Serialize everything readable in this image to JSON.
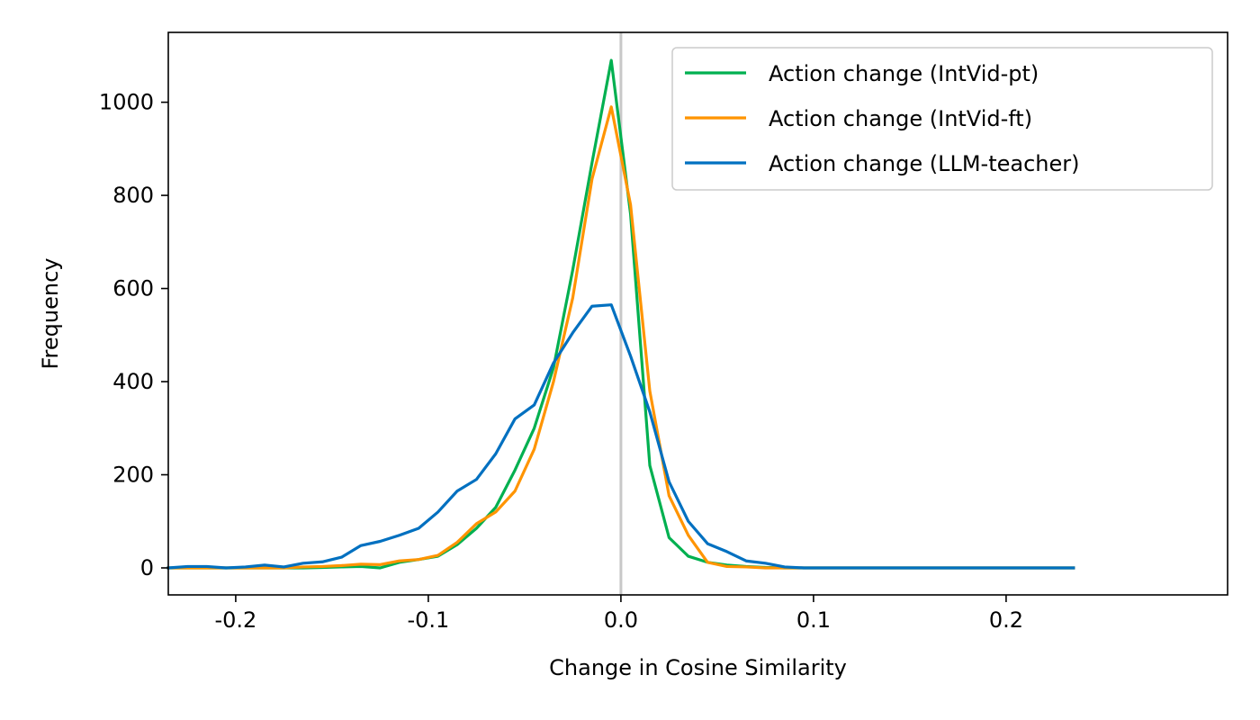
{
  "chart_data": {
    "type": "line",
    "xlabel": "Change in Cosine Similarity",
    "ylabel": "Frequency",
    "xlim": [
      -0.235,
      0.315
    ],
    "ylim": [
      -58,
      1150
    ],
    "x_ticks": [
      -0.2,
      -0.1,
      0.0,
      0.1,
      0.2
    ],
    "x_tick_labels": [
      "-0.2",
      "-0.1",
      "0.0",
      "0.1",
      "0.2"
    ],
    "y_ticks": [
      0,
      200,
      400,
      600,
      800,
      1000
    ],
    "y_tick_labels": [
      "0",
      "200",
      "400",
      "600",
      "800",
      "1000"
    ],
    "grid": false,
    "legend_position": "top-right",
    "reference_line": {
      "x": 0.0,
      "color": "#c8c8c8"
    },
    "x": [
      -0.235,
      -0.225,
      -0.215,
      -0.205,
      -0.195,
      -0.185,
      -0.175,
      -0.165,
      -0.155,
      -0.145,
      -0.135,
      -0.125,
      -0.115,
      -0.105,
      -0.095,
      -0.085,
      -0.075,
      -0.065,
      -0.055,
      -0.045,
      -0.035,
      -0.025,
      -0.015,
      -0.005,
      0.005,
      0.015,
      0.025,
      0.035,
      0.045,
      0.055,
      0.065,
      0.075,
      0.085,
      0.095,
      0.105,
      0.115,
      0.125,
      0.135,
      0.145,
      0.155,
      0.165,
      0.175,
      0.185,
      0.195,
      0.205,
      0.215,
      0.225,
      0.235
    ],
    "series": [
      {
        "name": "Action change (IntVid-pt)",
        "color": "#00b050",
        "values": [
          0,
          0,
          0,
          0,
          0,
          0,
          0,
          0,
          1,
          2,
          3,
          0,
          12,
          18,
          25,
          50,
          85,
          130,
          210,
          300,
          430,
          640,
          870,
          1090,
          760,
          220,
          65,
          25,
          12,
          6,
          3,
          1,
          0,
          0,
          0,
          0,
          0,
          0,
          0,
          0,
          0,
          0,
          0,
          0,
          0,
          0,
          0,
          0
        ]
      },
      {
        "name": "Action change (IntVid-ft)",
        "color": "#ff9400",
        "values": [
          0,
          0,
          0,
          0,
          0,
          0,
          0,
          2,
          3,
          5,
          8,
          7,
          15,
          18,
          27,
          55,
          95,
          120,
          165,
          255,
          400,
          580,
          835,
          990,
          780,
          380,
          155,
          70,
          12,
          3,
          2,
          0,
          0,
          0,
          0,
          0,
          0,
          0,
          0,
          0,
          0,
          0,
          0,
          0,
          0,
          0,
          0,
          0
        ]
      },
      {
        "name": "Action change (LLM-teacher)",
        "color": "#0070c0",
        "values": [
          0,
          3,
          3,
          0,
          2,
          6,
          2,
          10,
          13,
          23,
          48,
          57,
          70,
          85,
          120,
          165,
          190,
          245,
          320,
          350,
          440,
          505,
          562,
          565,
          455,
          335,
          185,
          100,
          52,
          35,
          15,
          10,
          2,
          0,
          0,
          0,
          0,
          0,
          0,
          0,
          0,
          0,
          0,
          0,
          0,
          0,
          0,
          0
        ]
      }
    ]
  }
}
